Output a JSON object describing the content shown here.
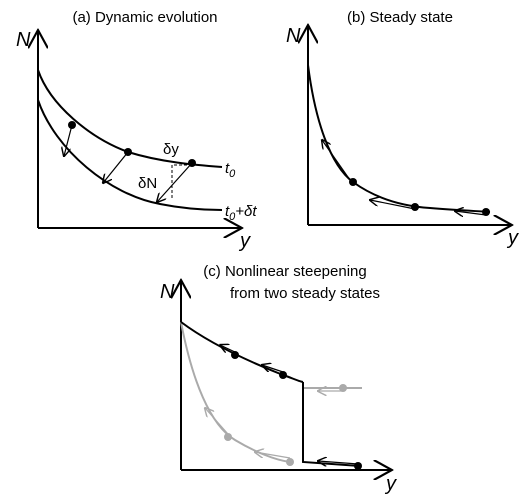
{
  "panels": [
    {
      "title": [
        "(a) Dynamic evolution"
      ],
      "ylabel": "N",
      "xlabel": "y",
      "annotations": {
        "dy": "δy",
        "dN": "δN"
      },
      "curve_labels": [
        {
          "base": "t",
          "sub": "0",
          "rest": ""
        },
        {
          "base": "t",
          "sub": "0",
          "rest": "+δt"
        }
      ]
    },
    {
      "title": [
        "(b) Steady state"
      ],
      "ylabel": "N",
      "xlabel": "y"
    },
    {
      "title": [
        "(c) Nonlinear steepening",
        "from two steady states"
      ],
      "ylabel": "N",
      "xlabel": "y"
    }
  ]
}
